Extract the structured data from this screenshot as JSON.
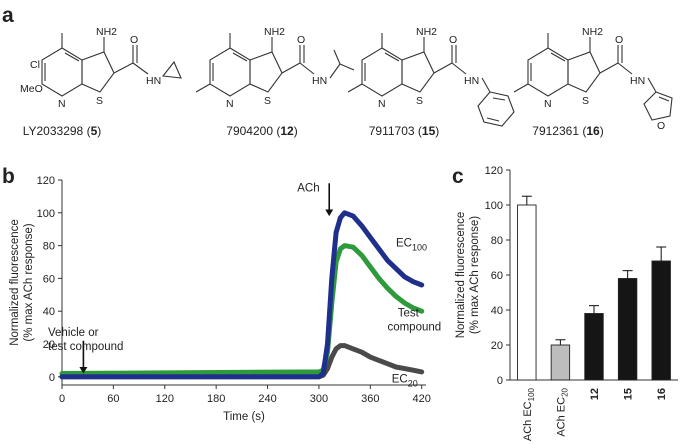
{
  "panels": {
    "a": {
      "letter": "a",
      "compounds": [
        {
          "name": "LY2033298",
          "id": "5",
          "substituents": {
            "amine": "NH2",
            "ring_left_1": "Cl",
            "ring_left_2": "MeO",
            "ring_n": "N",
            "ring_s": "S",
            "carbonyl": "O",
            "amide": "HN"
          }
        },
        {
          "name": "7904200",
          "id": "12",
          "substituents": {
            "amine": "NH2",
            "ring_n": "N",
            "ring_s": "S",
            "carbonyl": "O",
            "amide": "HN"
          }
        },
        {
          "name": "7911703",
          "id": "15",
          "substituents": {
            "amine": "NH2",
            "ring_n": "N",
            "ring_s": "S",
            "carbonyl": "O",
            "amide": "HN"
          }
        },
        {
          "name": "7912361",
          "id": "16",
          "substituents": {
            "amine": "NH2",
            "ring_n": "N",
            "ring_s": "S",
            "carbonyl": "O",
            "amide": "HN",
            "furan_o": "O"
          }
        }
      ]
    },
    "b": {
      "letter": "b",
      "chart_data": {
        "type": "line",
        "xlabel": "Time (s)",
        "ylabel_line1": "Normalized fluorescence",
        "ylabel_line2": "(% max ACh response)",
        "xlim": [
          0,
          425
        ],
        "ylim": [
          -5,
          120
        ],
        "xticks": [
          0,
          60,
          120,
          180,
          240,
          300,
          360,
          420
        ],
        "yticks": [
          0,
          20,
          40,
          60,
          80,
          100,
          120
        ],
        "annotations": {
          "vehicle_line1": "Vehicle or",
          "vehicle_line2": "test compound",
          "vehicle_time": 25,
          "ach": "ACh",
          "ach_time": 312
        },
        "series": [
          {
            "label_main": "EC",
            "label_sub": "100",
            "color": "#1e2f8c",
            "x": [
              0,
              300,
              305,
              310,
              315,
              320,
              325,
              330,
              340,
              350,
              360,
              370,
              380,
              390,
              400,
              410,
              420
            ],
            "y": [
              0,
              0,
              2,
              20,
              60,
              88,
              97,
              100,
              98,
              92,
              85,
              78,
              71,
              66,
              61,
              58,
              56
            ]
          },
          {
            "label_main": "Test",
            "label_sub": "",
            "label_line2": "compound",
            "color": "#2f9a3c",
            "x": [
              0,
              300,
              305,
              310,
              315,
              320,
              325,
              330,
              340,
              350,
              360,
              370,
              380,
              390,
              400,
              410,
              420
            ],
            "y": [
              2,
              3,
              4,
              15,
              45,
              70,
              78,
              80,
              79,
              74,
              67,
              60,
              54,
              49,
              45,
              42,
              40
            ]
          },
          {
            "label_main": "EC",
            "label_sub": "20",
            "color": "#4a4a4a",
            "x": [
              0,
              300,
              305,
              310,
              315,
              320,
              325,
              330,
              340,
              350,
              360,
              370,
              380,
              390,
              400,
              410,
              420
            ],
            "y": [
              0,
              0,
              1,
              5,
              12,
              17,
              19,
              19,
              17,
              15,
              12,
              10,
              8,
              6,
              5,
              4,
              3
            ]
          }
        ]
      }
    },
    "c": {
      "letter": "c",
      "chart_data": {
        "type": "bar",
        "ylabel_line1": "Normalized fluorescence",
        "ylabel_line2": "(% max ACh response)",
        "ylim": [
          0,
          120
        ],
        "yticks": [
          0,
          20,
          40,
          60,
          80,
          100,
          120
        ],
        "categories": [
          {
            "main": "ACh EC",
            "sub": "100",
            "bold": false
          },
          {
            "main": "ACh EC",
            "sub": "20",
            "bold": false
          },
          {
            "main": "12",
            "sub": "",
            "bold": true
          },
          {
            "main": "15",
            "sub": "",
            "bold": true
          },
          {
            "main": "16",
            "sub": "",
            "bold": true
          }
        ],
        "values": [
          100,
          20,
          38,
          58,
          68
        ],
        "errors": [
          5,
          3,
          4.5,
          4.5,
          8
        ],
        "colors": [
          "#ffffff",
          "#bdbdbd",
          "#151515",
          "#151515",
          "#151515"
        ]
      }
    }
  }
}
